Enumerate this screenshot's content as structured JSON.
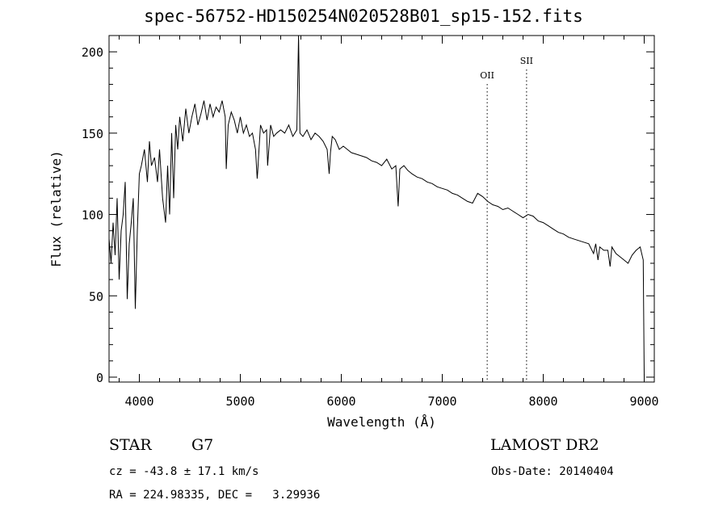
{
  "chart_data": {
    "type": "line",
    "title": "spec-56752-HD150254N020528B01_sp15-152.fits",
    "xlabel": "Wavelength (Å)",
    "ylabel": "Flux (relative)",
    "xlim": [
      3700,
      9100
    ],
    "ylim": [
      -3,
      210
    ],
    "xticks": [
      4000,
      5000,
      6000,
      7000,
      8000,
      9000
    ],
    "yticks": [
      0,
      50,
      100,
      150,
      200
    ],
    "grid": false,
    "series": [
      {
        "x": [
          3700,
          3720,
          3740,
          3760,
          3780,
          3800,
          3820,
          3840,
          3860,
          3880,
          3900,
          3920,
          3940,
          3960,
          3980,
          4000,
          4020,
          4050,
          4080,
          4100,
          4120,
          4150,
          4180,
          4200,
          4230,
          4260,
          4280,
          4300,
          4320,
          4340,
          4360,
          4380,
          4400,
          4430,
          4460,
          4490,
          4520,
          4550,
          4580,
          4610,
          4640,
          4670,
          4700,
          4730,
          4760,
          4790,
          4820,
          4850,
          4861,
          4880,
          4910,
          4940,
          4970,
          5000,
          5030,
          5060,
          5090,
          5120,
          5150,
          5167,
          5172,
          5183,
          5200,
          5230,
          5260,
          5270,
          5300,
          5330,
          5360,
          5400,
          5440,
          5480,
          5520,
          5560,
          5577,
          5590,
          5620,
          5660,
          5700,
          5740,
          5780,
          5820,
          5860,
          5880,
          5893,
          5910,
          5940,
          5980,
          6020,
          6060,
          6100,
          6150,
          6200,
          6250,
          6300,
          6350,
          6400,
          6450,
          6500,
          6540,
          6563,
          6580,
          6620,
          6660,
          6700,
          6750,
          6800,
          6850,
          6900,
          6950,
          7000,
          7050,
          7100,
          7150,
          7200,
          7250,
          7300,
          7350,
          7400,
          7450,
          7500,
          7550,
          7600,
          7650,
          7700,
          7750,
          7800,
          7850,
          7900,
          7950,
          8000,
          8050,
          8100,
          8150,
          8200,
          8250,
          8300,
          8350,
          8400,
          8450,
          8498,
          8520,
          8542,
          8560,
          8600,
          8640,
          8662,
          8680,
          8720,
          8760,
          8800,
          8840,
          8880,
          8920,
          8960,
          8990,
          9000
        ],
        "y": [
          85,
          70,
          95,
          75,
          110,
          60,
          90,
          100,
          120,
          48,
          82,
          95,
          110,
          42,
          90,
          125,
          130,
          140,
          120,
          145,
          130,
          135,
          120,
          140,
          110,
          95,
          130,
          100,
          150,
          110,
          155,
          140,
          160,
          145,
          165,
          150,
          160,
          168,
          155,
          162,
          170,
          158,
          168,
          160,
          166,
          163,
          170,
          160,
          128,
          155,
          163,
          158,
          150,
          160,
          150,
          155,
          148,
          150,
          140,
          122,
          126,
          138,
          155,
          150,
          152,
          130,
          155,
          148,
          150,
          152,
          150,
          155,
          148,
          152,
          210,
          150,
          148,
          152,
          146,
          150,
          148,
          145,
          140,
          125,
          138,
          148,
          146,
          140,
          142,
          140,
          138,
          137,
          136,
          135,
          133,
          132,
          130,
          134,
          128,
          130,
          105,
          128,
          130,
          127,
          125,
          123,
          122,
          120,
          119,
          117,
          116,
          115,
          113,
          112,
          110,
          108,
          107,
          113,
          111,
          108,
          106,
          105,
          103,
          104,
          102,
          100,
          98,
          100,
          99,
          96,
          95,
          93,
          91,
          89,
          88,
          86,
          85,
          84,
          83,
          82,
          76,
          82,
          72,
          80,
          78,
          78,
          68,
          80,
          76,
          74,
          72,
          70,
          75,
          78,
          80,
          72,
          0
        ]
      }
    ],
    "annotations": [
      {
        "text": "OII",
        "x": 7445
      },
      {
        "text": "SII",
        "x": 7835
      }
    ],
    "info": {
      "object_class": "STAR",
      "subclass": "G7",
      "survey": "LAMOST DR2",
      "cz": "cz = -43.8 ± 17.1 km/s",
      "obs_date": "Obs-Date: 20140404",
      "radec": "RA = 224.98335, DEC =   3.29936"
    }
  }
}
